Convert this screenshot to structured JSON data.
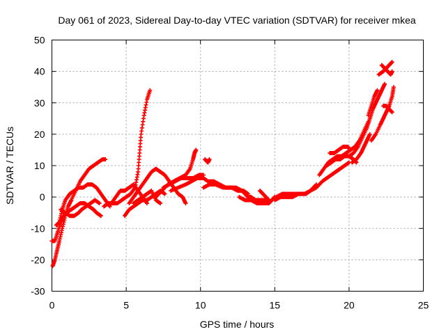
{
  "chart_data": {
    "type": "scatter",
    "title": "Day 061 of 2023, Sidereal Day-to-day VTEC variation (SDTVAR) for receiver mkea",
    "xlabel": "GPS time / hours",
    "ylabel": "SDTVAR / TECUs",
    "xlim": [
      0,
      25
    ],
    "ylim": [
      -30,
      50
    ],
    "x_ticks": [
      0,
      5,
      10,
      15,
      20,
      25
    ],
    "y_ticks": [
      -30,
      -20,
      -10,
      0,
      10,
      20,
      30,
      40,
      50
    ],
    "grid": true,
    "marker": "+",
    "color": "#ff0000",
    "series": [
      {
        "name": "track-1",
        "points": [
          [
            0.05,
            -22
          ],
          [
            0.2,
            -20
          ],
          [
            0.35,
            -17
          ],
          [
            0.5,
            -14
          ],
          [
            0.7,
            -10
          ],
          [
            0.9,
            -6
          ],
          [
            1.1,
            -3
          ],
          [
            1.3,
            -1
          ],
          [
            1.6,
            2
          ],
          [
            1.9,
            5
          ],
          [
            2.2,
            7
          ],
          [
            2.5,
            9
          ],
          [
            2.8,
            10
          ],
          [
            3.1,
            11
          ],
          [
            3.4,
            12
          ],
          [
            3.6,
            12
          ]
        ]
      },
      {
        "name": "track-2",
        "points": [
          [
            0.3,
            -9
          ],
          [
            0.5,
            -8
          ],
          [
            0.7,
            -4
          ],
          [
            0.9,
            -1
          ],
          [
            1.2,
            1
          ],
          [
            1.5,
            2
          ],
          [
            1.8,
            3
          ],
          [
            2.1,
            3
          ],
          [
            2.4,
            4
          ],
          [
            2.7,
            4
          ],
          [
            3.0,
            3
          ],
          [
            3.3,
            1
          ],
          [
            3.6,
            -1
          ],
          [
            3.9,
            -3
          ]
        ]
      },
      {
        "name": "track-3",
        "points": [
          [
            0.0,
            -14
          ],
          [
            0.2,
            -14
          ],
          [
            0.4,
            -11
          ],
          [
            0.6,
            -8
          ],
          [
            0.8,
            -6
          ],
          [
            1.0,
            -5
          ],
          [
            1.3,
            -4
          ],
          [
            1.6,
            -3
          ],
          [
            1.9,
            -2
          ],
          [
            2.2,
            -2
          ],
          [
            2.5,
            -3
          ],
          [
            2.8,
            -4
          ],
          [
            3.0,
            -5
          ],
          [
            3.3,
            -6
          ]
        ]
      },
      {
        "name": "track-4",
        "points": [
          [
            0.6,
            -4
          ],
          [
            0.9,
            -5
          ],
          [
            1.2,
            -6
          ],
          [
            1.5,
            -6
          ],
          [
            1.8,
            -5
          ],
          [
            2.0,
            -4
          ],
          [
            2.3,
            -3
          ],
          [
            2.6,
            -2
          ],
          [
            2.9,
            -1
          ],
          [
            3.2,
            -2
          ]
        ]
      },
      {
        "name": "track-5",
        "points": [
          [
            3.5,
            -3
          ],
          [
            3.8,
            -2
          ],
          [
            4.1,
            -2
          ],
          [
            4.4,
            -2
          ],
          [
            4.7,
            -1
          ],
          [
            5.0,
            0
          ],
          [
            5.3,
            1
          ],
          [
            5.6,
            3
          ],
          [
            5.8,
            8
          ],
          [
            5.9,
            14
          ],
          [
            6.0,
            20
          ],
          [
            6.2,
            26
          ],
          [
            6.4,
            31
          ],
          [
            6.6,
            34
          ]
        ]
      },
      {
        "name": "track-6",
        "points": [
          [
            4.0,
            -2
          ],
          [
            4.3,
            0
          ],
          [
            4.6,
            2
          ],
          [
            4.9,
            2
          ],
          [
            5.2,
            3
          ],
          [
            5.5,
            4
          ],
          [
            5.8,
            2
          ],
          [
            6.1,
            0
          ],
          [
            6.4,
            -2
          ]
        ]
      },
      {
        "name": "track-7",
        "points": [
          [
            4.9,
            -6
          ],
          [
            5.2,
            -4
          ],
          [
            5.5,
            -3
          ],
          [
            5.8,
            -2
          ],
          [
            6.1,
            -1
          ],
          [
            6.4,
            -1
          ],
          [
            6.7,
            0
          ],
          [
            7.0,
            1
          ],
          [
            7.3,
            2
          ],
          [
            7.6,
            1
          ]
        ]
      },
      {
        "name": "track-8",
        "points": [
          [
            5.2,
            -2
          ],
          [
            5.5,
            0
          ],
          [
            5.8,
            2
          ],
          [
            6.1,
            4
          ],
          [
            6.4,
            6
          ],
          [
            6.7,
            8
          ],
          [
            7.0,
            9
          ],
          [
            7.3,
            8
          ],
          [
            7.6,
            7
          ],
          [
            7.9,
            5
          ],
          [
            8.2,
            3
          ],
          [
            8.5,
            1
          ],
          [
            8.8,
            0
          ],
          [
            9.0,
            -2
          ]
        ]
      },
      {
        "name": "track-9",
        "points": [
          [
            5.5,
            -2
          ],
          [
            5.8,
            -1
          ],
          [
            6.1,
            0
          ],
          [
            6.4,
            1
          ],
          [
            6.7,
            2
          ],
          [
            7.0,
            -1
          ],
          [
            7.3,
            -2
          ]
        ]
      },
      {
        "name": "track-10",
        "points": [
          [
            7.0,
            0
          ],
          [
            7.4,
            2
          ],
          [
            7.8,
            4
          ],
          [
            8.2,
            5
          ],
          [
            8.6,
            6
          ],
          [
            9.0,
            7
          ],
          [
            9.3,
            9
          ],
          [
            9.5,
            12
          ],
          [
            9.6,
            14
          ],
          [
            9.7,
            15
          ]
        ]
      },
      {
        "name": "track-11",
        "points": [
          [
            7.5,
            3
          ],
          [
            7.9,
            4
          ],
          [
            8.3,
            5
          ],
          [
            8.7,
            6
          ],
          [
            9.1,
            6
          ],
          [
            9.5,
            6
          ],
          [
            9.9,
            7
          ],
          [
            10.2,
            7
          ]
        ]
      },
      {
        "name": "track-12",
        "points": [
          [
            8.0,
            2
          ],
          [
            8.5,
            3
          ],
          [
            9.0,
            4
          ],
          [
            9.4,
            5
          ],
          [
            9.8,
            6
          ],
          [
            10.2,
            6
          ],
          [
            10.5,
            5
          ],
          [
            10.9,
            5
          ],
          [
            11.3,
            4
          ],
          [
            11.7,
            3
          ],
          [
            12.1,
            3
          ],
          [
            12.5,
            2
          ],
          [
            12.9,
            2
          ],
          [
            13.2,
            1
          ]
        ]
      },
      {
        "name": "track-13",
        "points": [
          [
            10.3,
            12
          ],
          [
            10.5,
            11
          ],
          [
            10.6,
            12
          ]
        ]
      },
      {
        "name": "track-14",
        "points": [
          [
            10.2,
            3
          ],
          [
            10.6,
            4
          ],
          [
            11.0,
            4
          ],
          [
            11.5,
            3
          ],
          [
            12.0,
            3
          ],
          [
            12.4,
            3
          ],
          [
            12.8,
            2
          ],
          [
            13.0,
            1
          ],
          [
            13.2,
            0
          ],
          [
            13.4,
            0
          ],
          [
            13.7,
            -1
          ],
          [
            14.0,
            -1
          ],
          [
            14.3,
            -1
          ],
          [
            14.6,
            -1
          ]
        ]
      },
      {
        "name": "track-15",
        "points": [
          [
            12.6,
            0
          ],
          [
            13.0,
            -1
          ],
          [
            13.4,
            -1
          ],
          [
            13.8,
            -2
          ],
          [
            14.2,
            -2
          ],
          [
            14.6,
            -2
          ],
          [
            14.8,
            -1
          ],
          [
            15.0,
            0
          ]
        ]
      },
      {
        "name": "track-16",
        "points": [
          [
            14.0,
            2
          ],
          [
            14.2,
            1
          ],
          [
            14.4,
            0
          ],
          [
            14.6,
            -1
          ]
        ]
      },
      {
        "name": "track-17",
        "points": [
          [
            15.1,
            0
          ],
          [
            15.5,
            1
          ],
          [
            15.9,
            1
          ],
          [
            16.3,
            1
          ],
          [
            16.7,
            1
          ],
          [
            17.1,
            1
          ],
          [
            17.4,
            2
          ],
          [
            17.8,
            3
          ],
          [
            18.2,
            5
          ],
          [
            18.5,
            6
          ],
          [
            18.8,
            7
          ],
          [
            19.1,
            8
          ],
          [
            19.4,
            9
          ],
          [
            19.7,
            10
          ],
          [
            20.0,
            11
          ]
        ]
      },
      {
        "name": "track-18",
        "points": [
          [
            15.0,
            -1
          ],
          [
            15.4,
            0
          ],
          [
            15.8,
            0
          ],
          [
            16.2,
            0
          ],
          [
            16.6,
            1
          ],
          [
            17.0,
            1
          ],
          [
            17.4,
            2
          ],
          [
            17.8,
            4
          ]
        ]
      },
      {
        "name": "track-19",
        "points": [
          [
            18.0,
            7
          ],
          [
            18.3,
            9
          ],
          [
            18.6,
            11
          ],
          [
            18.9,
            12
          ],
          [
            19.2,
            13
          ],
          [
            19.5,
            13
          ],
          [
            19.8,
            14
          ],
          [
            20.1,
            15
          ],
          [
            20.4,
            16
          ],
          [
            20.7,
            18
          ],
          [
            21.0,
            21
          ],
          [
            21.3,
            24
          ]
        ]
      },
      {
        "name": "track-20",
        "points": [
          [
            18.5,
            10
          ],
          [
            18.8,
            11
          ],
          [
            19.1,
            12
          ],
          [
            19.4,
            12
          ],
          [
            19.7,
            13
          ],
          [
            20.0,
            13
          ],
          [
            20.3,
            12
          ],
          [
            20.5,
            11
          ]
        ]
      },
      {
        "name": "track-21",
        "points": [
          [
            18.7,
            14
          ],
          [
            19.0,
            14
          ],
          [
            19.3,
            15
          ],
          [
            19.6,
            16
          ],
          [
            19.9,
            16
          ],
          [
            20.1,
            15
          ]
        ]
      },
      {
        "name": "track-22",
        "points": [
          [
            20.0,
            13
          ],
          [
            20.3,
            14
          ],
          [
            20.6,
            16
          ],
          [
            20.9,
            19
          ],
          [
            21.2,
            22
          ],
          [
            21.4,
            25
          ],
          [
            21.6,
            28
          ],
          [
            21.8,
            30
          ],
          [
            22.0,
            32
          ],
          [
            22.2,
            34
          ],
          [
            22.4,
            36
          ]
        ]
      },
      {
        "name": "track-23",
        "points": [
          [
            20.2,
            11
          ],
          [
            20.5,
            12
          ],
          [
            20.8,
            14
          ],
          [
            21.0,
            16
          ],
          [
            21.2,
            18
          ],
          [
            21.4,
            20
          ]
        ]
      },
      {
        "name": "track-24",
        "points": [
          [
            21.3,
            26
          ],
          [
            21.5,
            29
          ],
          [
            21.7,
            32
          ],
          [
            21.9,
            34
          ]
        ]
      },
      {
        "name": "track-25",
        "points": [
          [
            21.5,
            18
          ],
          [
            21.8,
            20
          ],
          [
            22.1,
            23
          ],
          [
            22.3,
            25
          ],
          [
            22.5,
            27
          ],
          [
            22.7,
            29
          ],
          [
            22.9,
            32
          ],
          [
            23.0,
            35
          ]
        ]
      },
      {
        "name": "track-26",
        "points": [
          [
            22.3,
            29
          ],
          [
            22.5,
            29
          ],
          [
            22.7,
            28
          ],
          [
            22.9,
            27
          ]
        ]
      },
      {
        "name": "track-27",
        "points": [
          [
            22.0,
            39
          ],
          [
            22.3,
            40
          ],
          [
            22.5,
            41
          ],
          [
            22.7,
            42
          ],
          [
            22.9,
            43
          ]
        ]
      },
      {
        "name": "track-28",
        "points": [
          [
            22.2,
            42
          ],
          [
            22.4,
            41
          ],
          [
            22.6,
            40
          ],
          [
            22.8,
            39
          ],
          [
            22.9,
            40
          ]
        ]
      }
    ]
  }
}
